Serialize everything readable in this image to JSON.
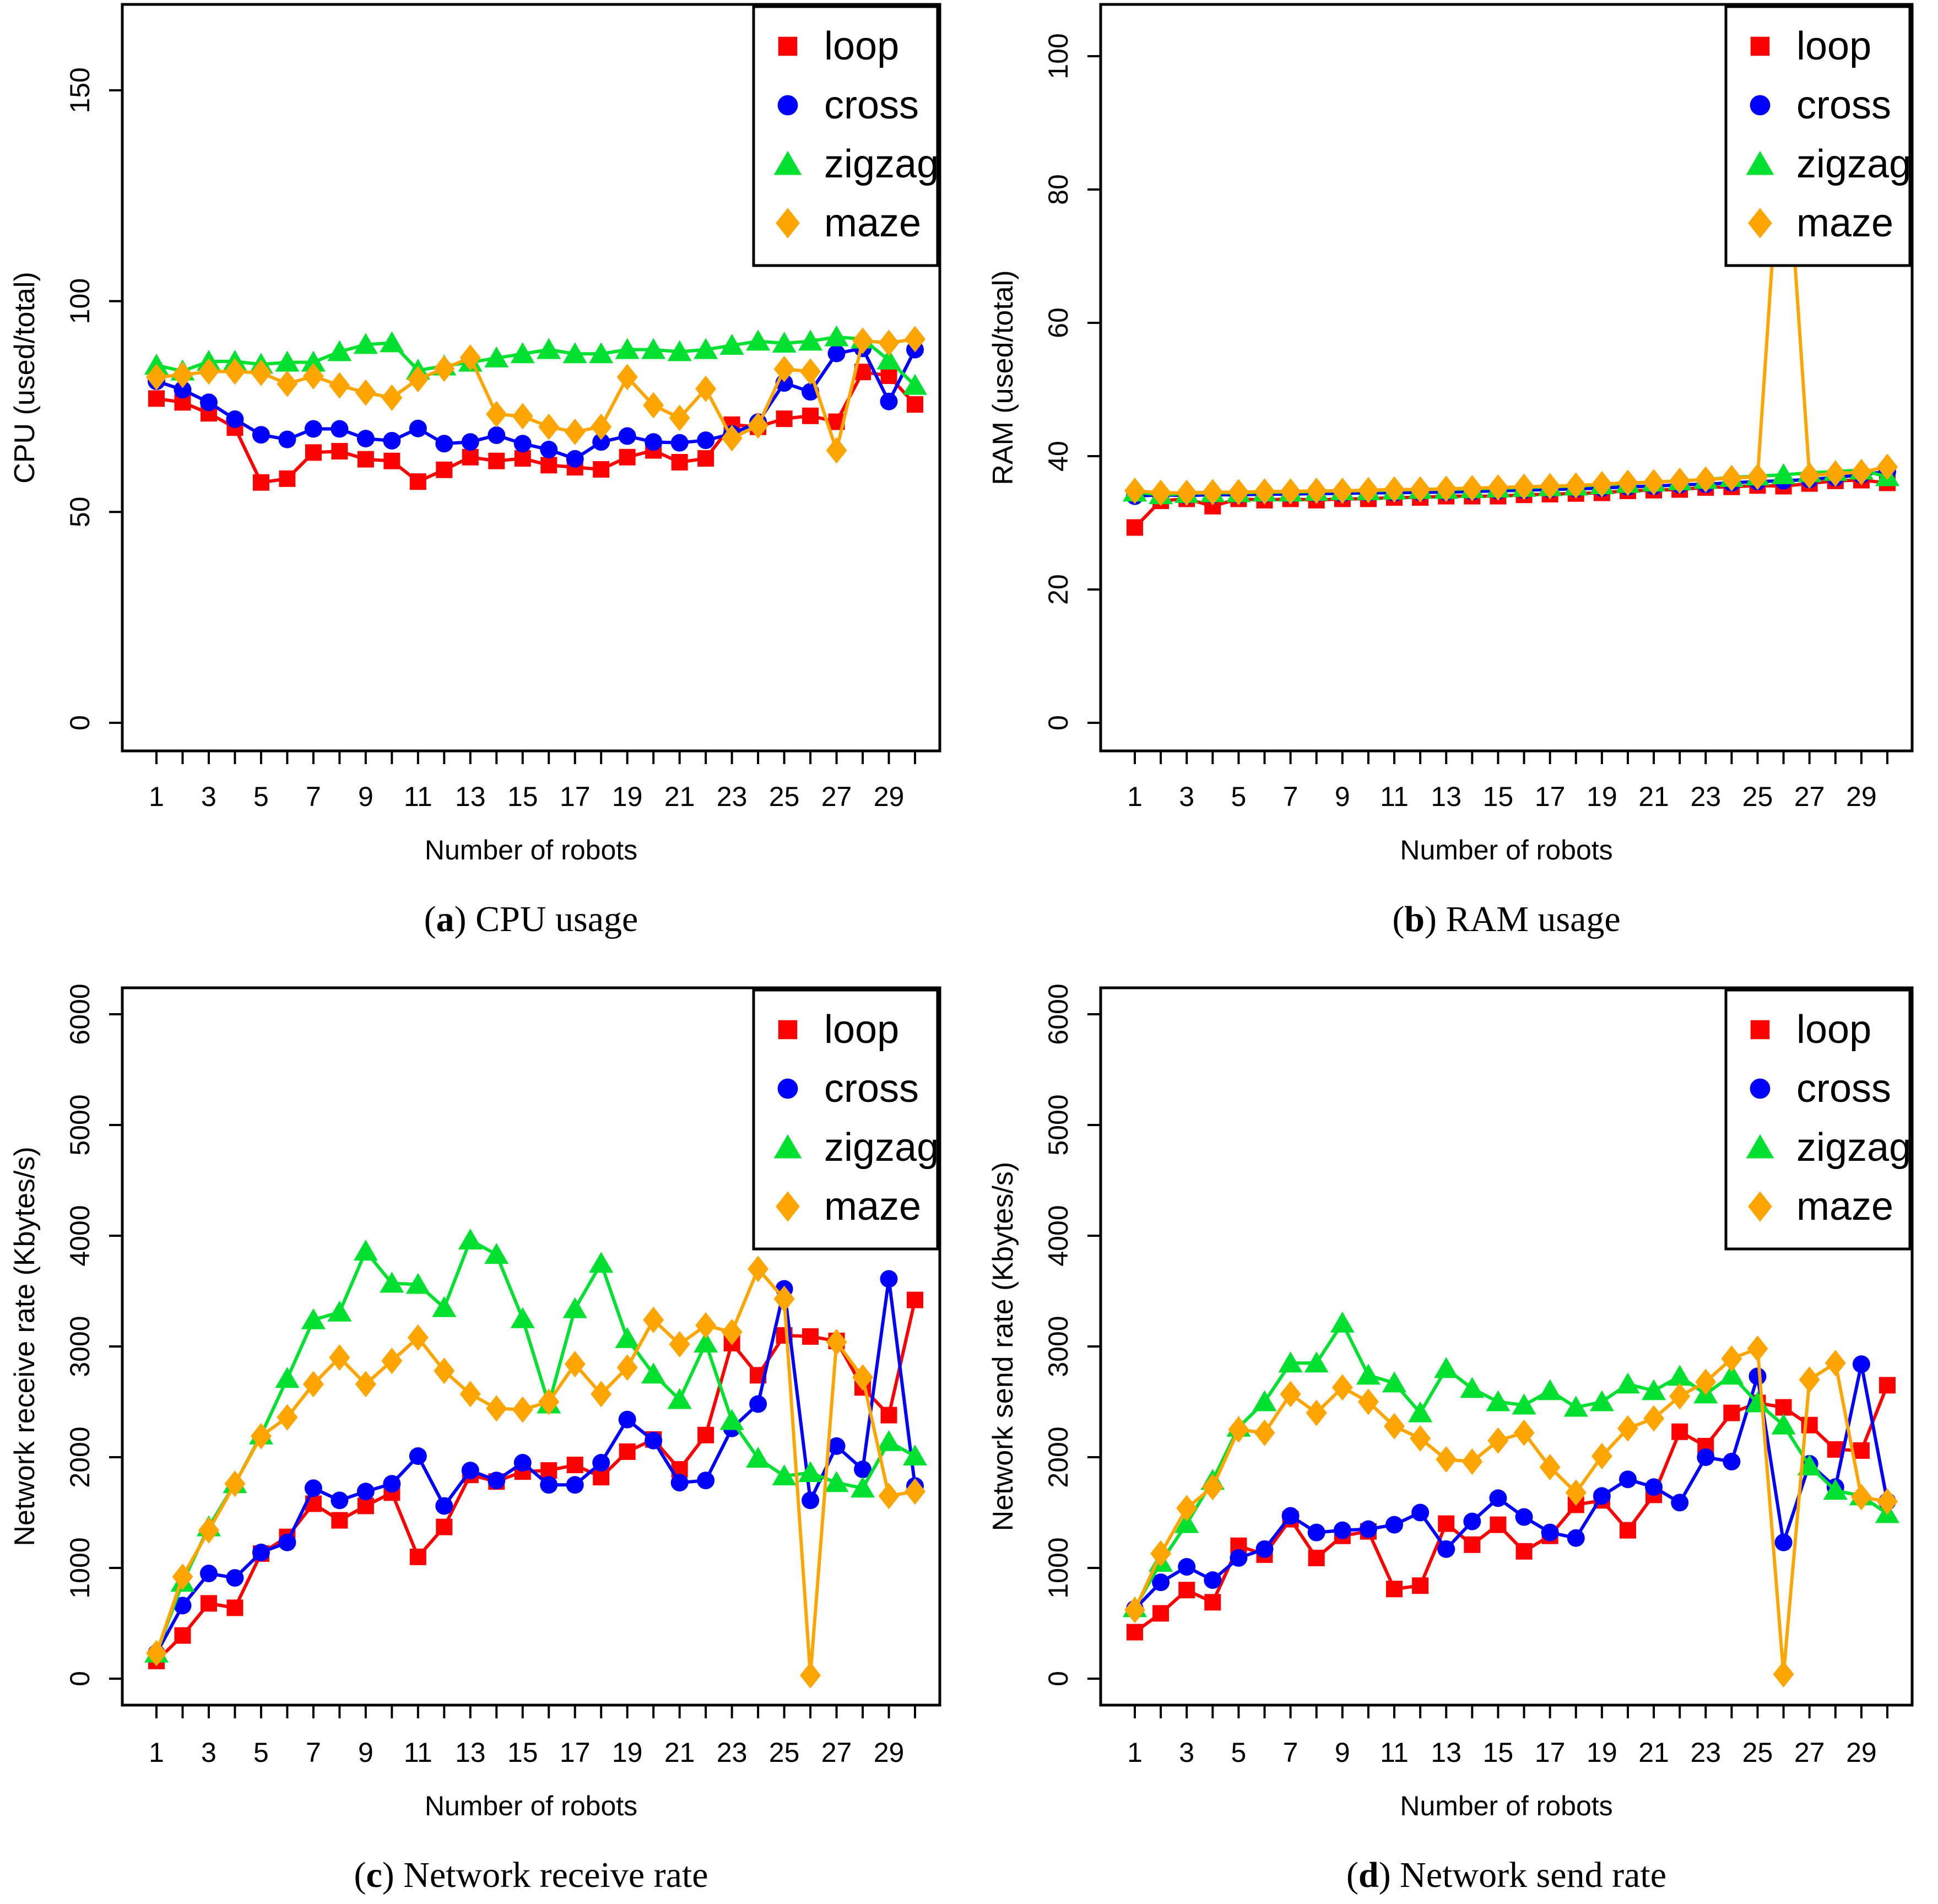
{
  "figure_title": "",
  "legend": {
    "items": [
      {
        "label": "loop",
        "marker": "square",
        "color": "#ff0000"
      },
      {
        "label": "cross",
        "marker": "circle",
        "color": "#0000ff"
      },
      {
        "label": "zigzag",
        "marker": "triangle",
        "color": "#00e030"
      },
      {
        "label": "maze",
        "marker": "diamond",
        "color": "#ffa500"
      }
    ]
  },
  "chart_data": [
    {
      "id": "a",
      "type": "line",
      "caption_pre": "(",
      "caption_letter": "a",
      "caption_post": ") ",
      "caption_text": "CPU usage",
      "xlabel": "Number of robots",
      "ylabel": "CPU (used/total)",
      "x": [
        1,
        2,
        3,
        4,
        5,
        6,
        7,
        8,
        9,
        10,
        11,
        12,
        13,
        14,
        15,
        16,
        17,
        18,
        19,
        20,
        21,
        22,
        23,
        24,
        25,
        26,
        27,
        28,
        29,
        30
      ],
      "x_tick_labels": [
        "1",
        "3",
        "5",
        "7",
        "9",
        "11",
        "13",
        "15",
        "17",
        "19",
        "21",
        "23",
        "25",
        "27",
        "29"
      ],
      "yticks": [
        0,
        50,
        100,
        150
      ],
      "ytick_labels": [
        "0",
        "50",
        "100",
        "150"
      ],
      "ylim": [
        0,
        177
      ],
      "grid": false,
      "legend_position": "top-right",
      "series": [
        {
          "name": "loop",
          "values": [
            76.9,
            76.0,
            73.4,
            70.0,
            57.0,
            57.9,
            64.1,
            64.4,
            62.5,
            62.1,
            57.2,
            60.0,
            63.0,
            62.1,
            62.7,
            61.1,
            60.6,
            60.1,
            63.0,
            64.6,
            61.8,
            62.7,
            70.7,
            70.2,
            72.1,
            72.8,
            71.4,
            83.2,
            82.3,
            75.5
          ]
        },
        {
          "name": "cross",
          "values": [
            81.0,
            79.0,
            76.0,
            72.0,
            68.3,
            67.2,
            69.7,
            69.7,
            67.4,
            66.9,
            69.8,
            66.2,
            66.6,
            68.2,
            66.2,
            64.8,
            62.6,
            66.6,
            68.0,
            66.6,
            66.4,
            67.0,
            68.5,
            71.3,
            80.6,
            78.5,
            87.6,
            88.8,
            76.2,
            88.5
          ]
        },
        {
          "name": "zigzag",
          "values": [
            84.8,
            83.4,
            85.7,
            85.7,
            85.0,
            85.5,
            85.5,
            88.0,
            89.7,
            90.1,
            83.6,
            84.6,
            85.5,
            86.5,
            87.5,
            88.5,
            87.5,
            87.5,
            88.5,
            88.5,
            88.0,
            88.5,
            89.5,
            90.5,
            90.0,
            90.5,
            91.5,
            91.0,
            86.0,
            80.0
          ]
        },
        {
          "name": "maze",
          "values": [
            82.0,
            82.5,
            83.3,
            83.3,
            83.0,
            80.4,
            82.2,
            80.0,
            78.3,
            77.1,
            81.5,
            84.0,
            86.6,
            73.2,
            72.7,
            70.2,
            69.0,
            70.2,
            82.0,
            75.3,
            72.3,
            79.2,
            67.5,
            70.5,
            83.9,
            83.3,
            64.6,
            90.6,
            90.1,
            91.0
          ]
        }
      ]
    },
    {
      "id": "b",
      "type": "line",
      "caption_pre": "(",
      "caption_letter": "b",
      "caption_post": ") ",
      "caption_text": "RAM usage",
      "xlabel": "Number of robots",
      "ylabel": "RAM (used/total)",
      "x": [
        1,
        2,
        3,
        4,
        5,
        6,
        7,
        8,
        9,
        10,
        11,
        12,
        13,
        14,
        15,
        16,
        17,
        18,
        19,
        20,
        21,
        22,
        23,
        24,
        25,
        26,
        27,
        28,
        29,
        30
      ],
      "x_tick_labels": [
        "1",
        "3",
        "5",
        "7",
        "9",
        "11",
        "13",
        "15",
        "17",
        "19",
        "21",
        "23",
        "25",
        "27",
        "29"
      ],
      "yticks": [
        0,
        20,
        40,
        60,
        80,
        100
      ],
      "ytick_labels": [
        "0",
        "20",
        "40",
        "60",
        "80",
        "100"
      ],
      "ylim": [
        0,
        108
      ],
      "grid": false,
      "legend_position": "top-right",
      "series": [
        {
          "name": "loop",
          "values": [
            29.3,
            33.3,
            33.6,
            32.5,
            33.6,
            33.4,
            33.6,
            33.4,
            33.6,
            33.6,
            33.8,
            33.8,
            34.0,
            34.0,
            34.0,
            34.2,
            34.3,
            34.4,
            34.5,
            34.8,
            34.9,
            35.0,
            35.3,
            35.4,
            35.6,
            35.5,
            35.9,
            36.3,
            36.4,
            36.0
          ]
        },
        {
          "name": "cross",
          "values": [
            34.0,
            34.2,
            34.1,
            34.2,
            34.2,
            34.3,
            34.3,
            34.4,
            34.4,
            34.5,
            34.5,
            34.6,
            34.6,
            34.7,
            34.8,
            34.9,
            35.0,
            35.1,
            35.2,
            35.4,
            35.5,
            35.7,
            35.8,
            36.0,
            36.2,
            36.3,
            36.5,
            36.8,
            37.2,
            37.7
          ]
        },
        {
          "name": "zigzag",
          "values": [
            34.6,
            34.2,
            34.4,
            34.5,
            34.5,
            34.6,
            34.6,
            34.7,
            34.8,
            34.8,
            34.9,
            35.0,
            35.0,
            35.1,
            35.2,
            35.3,
            35.4,
            35.5,
            35.7,
            35.9,
            36.1,
            36.3,
            36.5,
            36.8,
            37.0,
            37.2,
            37.5,
            37.7,
            37.9,
            36.9
          ]
        },
        {
          "name": "maze",
          "values": [
            34.8,
            34.5,
            34.5,
            34.6,
            34.6,
            34.7,
            34.7,
            34.8,
            34.8,
            34.9,
            35.0,
            35.0,
            35.1,
            35.2,
            35.3,
            35.4,
            35.5,
            35.6,
            35.8,
            36.0,
            36.1,
            36.3,
            36.5,
            36.7,
            36.9,
            94.1,
            37.1,
            37.4,
            37.6,
            38.4
          ]
        }
      ]
    },
    {
      "id": "c",
      "type": "line",
      "caption_pre": "(",
      "caption_letter": "c",
      "caption_post": ") ",
      "caption_text": "Network receive rate",
      "xlabel": "Number of robots",
      "ylabel": "Network receive rate (Kbytes/s)",
      "x": [
        1,
        2,
        3,
        4,
        5,
        6,
        7,
        8,
        9,
        10,
        11,
        12,
        13,
        14,
        15,
        16,
        17,
        18,
        19,
        20,
        21,
        22,
        23,
        24,
        25,
        26,
        27,
        28,
        29,
        30
      ],
      "x_tick_labels": [
        "1",
        "3",
        "5",
        "7",
        "9",
        "11",
        "13",
        "15",
        "17",
        "19",
        "21",
        "23",
        "25",
        "27",
        "29"
      ],
      "yticks": [
        0,
        1000,
        2000,
        3000,
        4000,
        5000,
        6000
      ],
      "ytick_labels": [
        "0",
        "1000",
        "2000",
        "3000",
        "4000",
        "5000",
        "6000"
      ],
      "ylim": [
        0,
        6240
      ],
      "grid": false,
      "legend_position": "top-right",
      "series": [
        {
          "name": "loop",
          "values": [
            160,
            390,
            680,
            640,
            1130,
            1280,
            1580,
            1430,
            1560,
            1680,
            1100,
            1370,
            1840,
            1780,
            1870,
            1880,
            1930,
            1820,
            2050,
            2160,
            1890,
            2200,
            3030,
            2740,
            3100,
            3090,
            3050,
            2630,
            2380,
            3420
          ]
        },
        {
          "name": "cross",
          "values": [
            230,
            660,
            950,
            910,
            1140,
            1230,
            1720,
            1610,
            1690,
            1760,
            2010,
            1560,
            1880,
            1790,
            1950,
            1750,
            1750,
            1950,
            2340,
            2150,
            1770,
            1790,
            2260,
            2480,
            3520,
            1610,
            2100,
            1890,
            3610,
            1740
          ]
        },
        {
          "name": "zigzag",
          "values": [
            230,
            870,
            1370,
            1760,
            2200,
            2710,
            3240,
            3310,
            3860,
            3570,
            3560,
            3350,
            3960,
            3830,
            3250,
            2480,
            3340,
            3750,
            3070,
            2750,
            2520,
            3030,
            2330,
            1990,
            1830,
            1860,
            1770,
            1720,
            2140,
            2010
          ]
        },
        {
          "name": "maze",
          "values": [
            230,
            920,
            1340,
            1760,
            2190,
            2360,
            2660,
            2900,
            2660,
            2870,
            3080,
            2780,
            2570,
            2440,
            2430,
            2500,
            2840,
            2570,
            2810,
            3240,
            3020,
            3190,
            3130,
            3700,
            3430,
            30,
            3040,
            2720,
            1650,
            1690
          ]
        }
      ]
    },
    {
      "id": "d",
      "type": "line",
      "caption_pre": "(",
      "caption_letter": "d",
      "caption_post": ") ",
      "caption_text": "Network send rate",
      "xlabel": "Number of robots",
      "ylabel": "Network send rate (Kbytes/s)",
      "x": [
        1,
        2,
        3,
        4,
        5,
        6,
        7,
        8,
        9,
        10,
        11,
        12,
        13,
        14,
        15,
        16,
        17,
        18,
        19,
        20,
        21,
        22,
        23,
        24,
        25,
        26,
        27,
        28,
        29,
        30
      ],
      "x_tick_labels": [
        "1",
        "3",
        "5",
        "7",
        "9",
        "11",
        "13",
        "15",
        "17",
        "19",
        "21",
        "23",
        "25",
        "27",
        "29"
      ],
      "yticks": [
        0,
        1000,
        2000,
        3000,
        4000,
        5000,
        6000
      ],
      "ytick_labels": [
        "0",
        "1000",
        "2000",
        "3000",
        "4000",
        "5000",
        "6000"
      ],
      "ylim": [
        0,
        6240
      ],
      "grid": false,
      "legend_position": "top-right",
      "series": [
        {
          "name": "loop",
          "values": [
            420,
            590,
            800,
            690,
            1200,
            1120,
            1440,
            1090,
            1290,
            1330,
            810,
            840,
            1400,
            1210,
            1390,
            1150,
            1290,
            1570,
            1610,
            1340,
            1660,
            2230,
            2100,
            2400,
            2490,
            2450,
            2290,
            2070,
            2060,
            2650
          ]
        },
        {
          "name": "cross",
          "values": [
            630,
            870,
            1010,
            890,
            1090,
            1170,
            1470,
            1320,
            1340,
            1350,
            1390,
            1500,
            1170,
            1420,
            1630,
            1460,
            1320,
            1270,
            1650,
            1800,
            1730,
            1590,
            2000,
            1960,
            2730,
            1230,
            1940,
            1730,
            2840,
            1600
          ]
        },
        {
          "name": "zigzag",
          "values": [
            640,
            1050,
            1400,
            1790,
            2270,
            2500,
            2850,
            2850,
            3210,
            2740,
            2670,
            2400,
            2800,
            2620,
            2500,
            2470,
            2600,
            2450,
            2500,
            2660,
            2600,
            2730,
            2570,
            2740,
            2490,
            2290,
            1920,
            1700,
            1650,
            1490
          ]
        },
        {
          "name": "maze",
          "values": [
            620,
            1130,
            1540,
            1730,
            2250,
            2220,
            2570,
            2400,
            2630,
            2500,
            2280,
            2170,
            1980,
            1960,
            2150,
            2220,
            1910,
            1680,
            2010,
            2260,
            2350,
            2550,
            2680,
            2890,
            2980,
            40,
            2700,
            2850,
            1640,
            1600
          ]
        }
      ]
    }
  ]
}
